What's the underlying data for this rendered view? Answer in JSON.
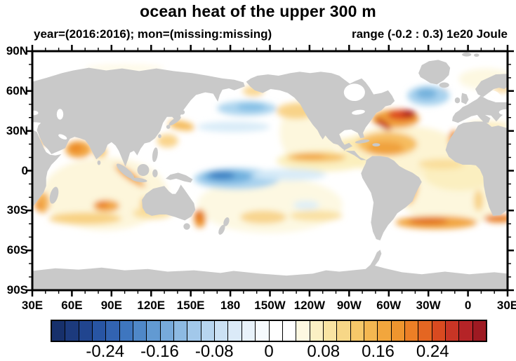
{
  "title": "ocean heat of the upper 300 m",
  "subtitle_left": "year=(2016:2016); mon=(missing:missing)",
  "subtitle_right": "range (-0.2 : 0.3) 1e20 Joule",
  "axes": {
    "lat_ticks": [
      "90N",
      "60N",
      "30N",
      "0",
      "30S",
      "60S",
      "90S"
    ],
    "lon_ticks": [
      "30E",
      "60E",
      "90E",
      "120E",
      "150E",
      "180",
      "150W",
      "120W",
      "90W",
      "60W",
      "30W",
      "0",
      "30E"
    ]
  },
  "map": {
    "land_color": "#c9c9c9",
    "ocean_color": "#ffffff"
  },
  "colorbar": {
    "labels": [
      "-0.24",
      "-0.16",
      "-0.08",
      "0",
      "0.08",
      "0.16",
      "0.24"
    ],
    "first_label_after_cell": 4,
    "label_every_n_cells": 4,
    "colors": [
      "#17306b",
      "#1c3a7d",
      "#21458f",
      "#2855a4",
      "#3263b1",
      "#3e76bf",
      "#4f88c8",
      "#629ad2",
      "#77aadb",
      "#8dbae3",
      "#a2c8ea",
      "#b7d5ef",
      "#cbe1f4",
      "#dbeaf8",
      "#e8f2fa",
      "#f6fafd",
      "#ffffff",
      "#ffffff",
      "#fdf8e1",
      "#fbf0c4",
      "#f9e4a3",
      "#f7d787",
      "#f6c869",
      "#f4b751",
      "#f2a63d",
      "#ef952e",
      "#ec7f26",
      "#e46622",
      "#d94a20",
      "#c83525",
      "#b52427",
      "#9e1a22"
    ]
  },
  "chart_data": {
    "type": "heatmap",
    "title": "ocean heat of the upper 300 m",
    "subtitle": "year=(2016:2016); mon=(missing:missing)",
    "units": "1e20 Joule",
    "data_range": [
      -0.2,
      0.3
    ],
    "projection": "equirectangular, global, left edge at 30E",
    "lon_ticks": [
      "30E",
      "60E",
      "90E",
      "120E",
      "150E",
      "180",
      "150W",
      "120W",
      "90W",
      "60W",
      "30W",
      "0",
      "30E"
    ],
    "lat_ticks": [
      "90N",
      "60N",
      "30N",
      "0",
      "30S",
      "60S",
      "90S"
    ],
    "contour_levels": {
      "min": -0.3,
      "max": 0.3,
      "step": 0.02
    },
    "colorbar_tick_values": [
      -0.24,
      -0.16,
      -0.08,
      0,
      0.08,
      0.16,
      0.24
    ],
    "land_rendering": "gray (no data over land)",
    "anomalies": [
      {
        "region": "Gulf Stream / NW Atlantic",
        "lon": "60W-40W",
        "lat": "35N-45N",
        "value": 0.3
      },
      {
        "region": "Subtropical western North Atlantic",
        "lon": "75W-30W",
        "lat": "15N-35N",
        "value": 0.12
      },
      {
        "region": "Subpolar North Atlantic south of Greenland",
        "lon": "45W-20W",
        "lat": "50N-60N",
        "value": -0.12
      },
      {
        "region": "Central North Pacific",
        "lon": "170E-150W",
        "lat": "30N-40N",
        "value": -0.1
      },
      {
        "region": "Western equatorial Pacific",
        "lon": "150E-175W",
        "lat": "15S-5N",
        "value": -0.18
      },
      {
        "region": "Arabian Sea",
        "lon": "55E-70E",
        "lat": "10N-20N",
        "value": 0.16
      },
      {
        "region": "Bay of Bengal",
        "lon": "80E-95E",
        "lat": "8N-18N",
        "value": 0.1
      },
      {
        "region": "Sumatra-Java coast",
        "lon": "95E-115E",
        "lat": "10S-0",
        "value": 0.12
      },
      {
        "region": "Central south Indian Ocean",
        "lon": "75E-95E",
        "lat": "30S-20S",
        "value": 0.12
      },
      {
        "region": "Mozambique Channel / East Africa",
        "lon": "32E-45E",
        "lat": "30S-15S",
        "value": 0.1
      },
      {
        "region": "South Indian Ocean band",
        "lon": "40E-110E",
        "lat": "45S-35S",
        "value": 0.08
      },
      {
        "region": "Tasman Sea off SE Australia",
        "lon": "150E-160E",
        "lat": "42S-30S",
        "value": 0.15
      },
      {
        "region": "South Pacific east of New Zealand",
        "lon": "170E-120W",
        "lat": "45S-30S",
        "value": 0.08
      },
      {
        "region": "South Atlantic band",
        "lon": "50W-10E",
        "lat": "42S-33S",
        "value": 0.18
      },
      {
        "region": "SE Brazil coast",
        "lon": "50W-40W",
        "lat": "30S-20S",
        "value": 0.12
      },
      {
        "region": "NW Africa / Canary coast",
        "lon": "20W-10W",
        "lat": "15N-30N",
        "value": 0.12
      },
      {
        "region": "NE Pacific / California coast",
        "lon": "140W-115W",
        "lat": "20N-50N",
        "value": 0.08
      },
      {
        "region": "Eastern equatorial Pacific band",
        "lon": "150W-100W",
        "lat": "5N-12N",
        "value": 0.08
      },
      {
        "region": "SE Pacific spot",
        "lon": "105W-85W",
        "lat": "35S-28S",
        "value": -0.04
      },
      {
        "region": "Kuroshio extension / East China Sea",
        "lon": "125E-155E",
        "lat": "25N-38N",
        "value": 0.08
      },
      {
        "region": "Bering Sea",
        "lon": "175E-165W",
        "lat": "52N-60N",
        "value": 0.06
      },
      {
        "region": "Barents / Norwegian Sea",
        "lon": "0-30E",
        "lat": "65N-75N",
        "value": 0.05
      },
      {
        "region": "Southern Ocean south of 50S",
        "lon": "global",
        "lat": "70S-50S",
        "value": 0.0
      }
    ]
  }
}
